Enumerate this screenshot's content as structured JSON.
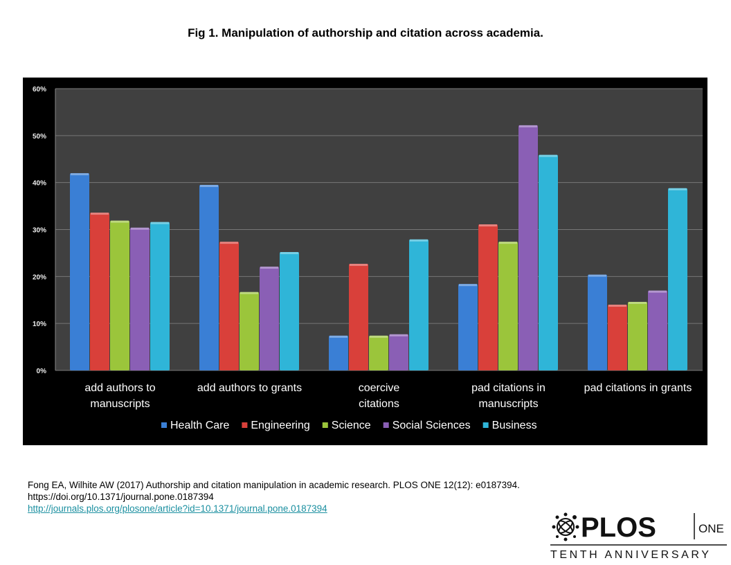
{
  "figure_title": "Fig 1. Manipulation of authorship and citation across academia.",
  "chart_data": {
    "type": "bar",
    "title": "",
    "xlabel": "",
    "ylabel": "",
    "ylim": [
      0,
      60
    ],
    "yticks": [
      "0%",
      "10%",
      "20%",
      "30%",
      "40%",
      "50%",
      "60%"
    ],
    "grid": true,
    "legend_placement": "bottom",
    "categories": [
      [
        "add authors to",
        "manuscripts"
      ],
      [
        "add authors to grants"
      ],
      [
        "coercive",
        "citations"
      ],
      [
        "pad citations in",
        "manuscripts"
      ],
      [
        "pad citations in grants"
      ]
    ],
    "series": [
      {
        "name": "Health Care",
        "color": "#3a7fd5",
        "values": [
          42,
          39.5,
          7.4,
          18.4,
          20.4
        ]
      },
      {
        "name": "Engineering",
        "color": "#d9403a",
        "values": [
          33.6,
          27.4,
          22.7,
          31.1,
          14.0
        ]
      },
      {
        "name": "Science",
        "color": "#9bc53b",
        "values": [
          31.9,
          16.7,
          7.4,
          27.4,
          14.6
        ]
      },
      {
        "name": "Social Sciences",
        "color": "#8a5fb5",
        "values": [
          30.4,
          22.1,
          7.7,
          52.2,
          17.0
        ]
      },
      {
        "name": "Business",
        "color": "#2fb5d8",
        "values": [
          31.6,
          25.2,
          27.9,
          45.9,
          38.8
        ]
      }
    ]
  },
  "citation": {
    "line1": "Fong EA, Wilhite AW (2017) Authorship and citation manipulation in academic research. PLOS ONE 12(12): e0187394.",
    "line2": "https://doi.org/10.1371/journal.pone.0187394",
    "link": "http://journals.plos.org/plosone/article?id=10.1371/journal.pone.0187394"
  },
  "logo": {
    "brand": "PLOS",
    "journal": "ONE",
    "tagline": "TENTH ANNIVERSARY"
  }
}
